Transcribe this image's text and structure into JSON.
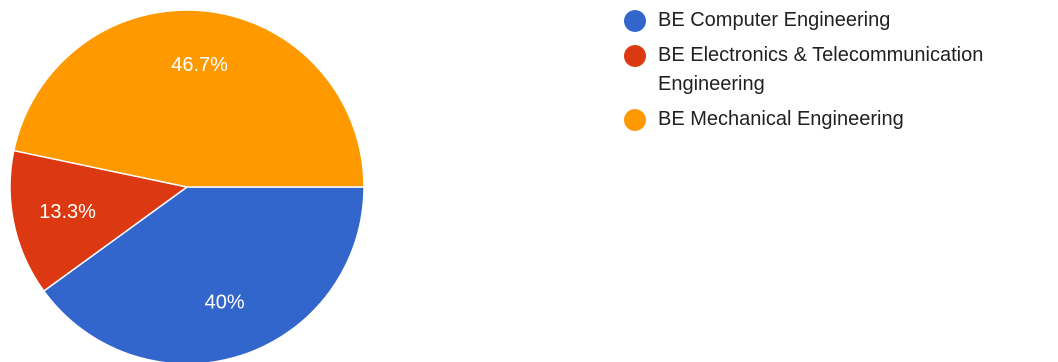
{
  "chart_data": {
    "type": "pie",
    "categories": [
      "BE Computer Engineering",
      "BE Electronics & Telecommunication Engineering",
      "BE Mechanical Engineering"
    ],
    "values": [
      40,
      13.3,
      46.7
    ],
    "labels": [
      "40%",
      "13.3%",
      "46.7%"
    ],
    "colors": [
      "#3366cc",
      "#dc3912",
      "#ff9900"
    ],
    "legend_position": "right"
  }
}
